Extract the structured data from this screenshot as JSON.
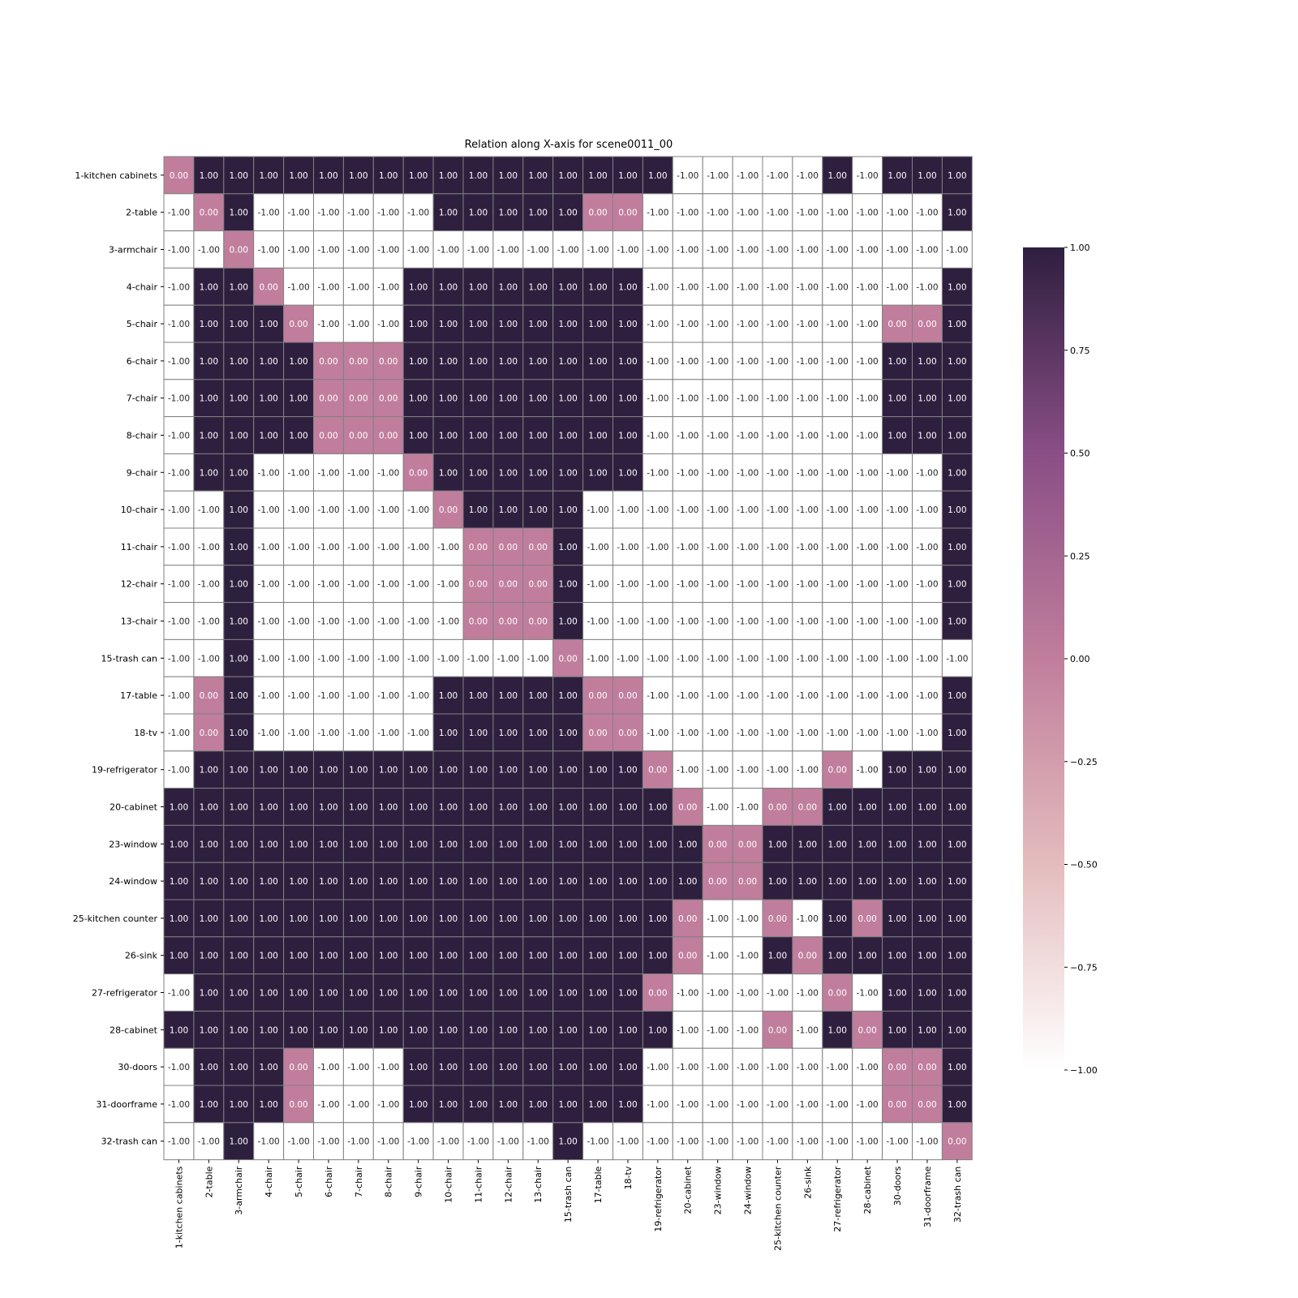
{
  "chart_data": {
    "type": "heatmap",
    "title": "Relation along X-axis for scene0011_00",
    "labels": [
      "1-kitchen cabinets",
      "2-table",
      "3-armchair",
      "4-chair",
      "5-chair",
      "6-chair",
      "7-chair",
      "8-chair",
      "9-chair",
      "10-chair",
      "11-chair",
      "12-chair",
      "13-chair",
      "15-trash can",
      "17-table",
      "18-tv",
      "19-refrigerator",
      "20-cabinet",
      "23-window",
      "24-window",
      "25-kitchen counter",
      "26-sink",
      "27-refrigerator",
      "28-cabinet",
      "30-doors",
      "31-doorframe",
      "32-trash can"
    ],
    "matrix": [
      [
        0,
        1,
        1,
        1,
        1,
        1,
        1,
        1,
        1,
        1,
        1,
        1,
        1,
        1,
        1,
        1,
        1,
        -1,
        -1,
        -1,
        -1,
        -1,
        1,
        -1,
        1,
        1,
        1
      ],
      [
        -1,
        0,
        1,
        -1,
        -1,
        -1,
        -1,
        -1,
        -1,
        1,
        1,
        1,
        1,
        1,
        0,
        0,
        -1,
        -1,
        -1,
        -1,
        -1,
        -1,
        -1,
        -1,
        -1,
        -1,
        1
      ],
      [
        -1,
        -1,
        0,
        -1,
        -1,
        -1,
        -1,
        -1,
        -1,
        -1,
        -1,
        -1,
        -1,
        -1,
        -1,
        -1,
        -1,
        -1,
        -1,
        -1,
        -1,
        -1,
        -1,
        -1,
        -1,
        -1,
        -1
      ],
      [
        -1,
        1,
        1,
        0,
        -1,
        -1,
        -1,
        -1,
        1,
        1,
        1,
        1,
        1,
        1,
        1,
        1,
        -1,
        -1,
        -1,
        -1,
        -1,
        -1,
        -1,
        -1,
        -1,
        -1,
        1
      ],
      [
        -1,
        1,
        1,
        1,
        0,
        -1,
        -1,
        -1,
        1,
        1,
        1,
        1,
        1,
        1,
        1,
        1,
        -1,
        -1,
        -1,
        -1,
        -1,
        -1,
        -1,
        -1,
        0,
        0,
        1
      ],
      [
        -1,
        1,
        1,
        1,
        1,
        0,
        0,
        0,
        1,
        1,
        1,
        1,
        1,
        1,
        1,
        1,
        -1,
        -1,
        -1,
        -1,
        -1,
        -1,
        -1,
        -1,
        1,
        1,
        1
      ],
      [
        -1,
        1,
        1,
        1,
        1,
        0,
        0,
        0,
        1,
        1,
        1,
        1,
        1,
        1,
        1,
        1,
        -1,
        -1,
        -1,
        -1,
        -1,
        -1,
        -1,
        -1,
        1,
        1,
        1
      ],
      [
        -1,
        1,
        1,
        1,
        1,
        0,
        0,
        0,
        1,
        1,
        1,
        1,
        1,
        1,
        1,
        1,
        -1,
        -1,
        -1,
        -1,
        -1,
        -1,
        -1,
        -1,
        1,
        1,
        1
      ],
      [
        -1,
        1,
        1,
        -1,
        -1,
        -1,
        -1,
        -1,
        0,
        1,
        1,
        1,
        1,
        1,
        1,
        1,
        -1,
        -1,
        -1,
        -1,
        -1,
        -1,
        -1,
        -1,
        -1,
        -1,
        1
      ],
      [
        -1,
        -1,
        1,
        -1,
        -1,
        -1,
        -1,
        -1,
        -1,
        0,
        1,
        1,
        1,
        1,
        -1,
        -1,
        -1,
        -1,
        -1,
        -1,
        -1,
        -1,
        -1,
        -1,
        -1,
        -1,
        1
      ],
      [
        -1,
        -1,
        1,
        -1,
        -1,
        -1,
        -1,
        -1,
        -1,
        -1,
        0,
        0,
        0,
        1,
        -1,
        -1,
        -1,
        -1,
        -1,
        -1,
        -1,
        -1,
        -1,
        -1,
        -1,
        -1,
        1
      ],
      [
        -1,
        -1,
        1,
        -1,
        -1,
        -1,
        -1,
        -1,
        -1,
        -1,
        0,
        0,
        0,
        1,
        -1,
        -1,
        -1,
        -1,
        -1,
        -1,
        -1,
        -1,
        -1,
        -1,
        -1,
        -1,
        1
      ],
      [
        -1,
        -1,
        1,
        -1,
        -1,
        -1,
        -1,
        -1,
        -1,
        -1,
        0,
        0,
        0,
        1,
        -1,
        -1,
        -1,
        -1,
        -1,
        -1,
        -1,
        -1,
        -1,
        -1,
        -1,
        -1,
        1
      ],
      [
        -1,
        -1,
        1,
        -1,
        -1,
        -1,
        -1,
        -1,
        -1,
        -1,
        -1,
        -1,
        -1,
        0,
        -1,
        -1,
        -1,
        -1,
        -1,
        -1,
        -1,
        -1,
        -1,
        -1,
        -1,
        -1,
        -1
      ],
      [
        -1,
        0,
        1,
        -1,
        -1,
        -1,
        -1,
        -1,
        -1,
        1,
        1,
        1,
        1,
        1,
        0,
        0,
        -1,
        -1,
        -1,
        -1,
        -1,
        -1,
        -1,
        -1,
        -1,
        -1,
        1
      ],
      [
        -1,
        0,
        1,
        -1,
        -1,
        -1,
        -1,
        -1,
        -1,
        1,
        1,
        1,
        1,
        1,
        0,
        0,
        -1,
        -1,
        -1,
        -1,
        -1,
        -1,
        -1,
        -1,
        -1,
        -1,
        1
      ],
      [
        -1,
        1,
        1,
        1,
        1,
        1,
        1,
        1,
        1,
        1,
        1,
        1,
        1,
        1,
        1,
        1,
        0,
        -1,
        -1,
        -1,
        -1,
        -1,
        0,
        -1,
        1,
        1,
        1
      ],
      [
        1,
        1,
        1,
        1,
        1,
        1,
        1,
        1,
        1,
        1,
        1,
        1,
        1,
        1,
        1,
        1,
        1,
        0,
        -1,
        -1,
        0,
        0,
        1,
        1,
        1,
        1,
        1
      ],
      [
        1,
        1,
        1,
        1,
        1,
        1,
        1,
        1,
        1,
        1,
        1,
        1,
        1,
        1,
        1,
        1,
        1,
        1,
        0,
        0,
        1,
        1,
        1,
        1,
        1,
        1,
        1
      ],
      [
        1,
        1,
        1,
        1,
        1,
        1,
        1,
        1,
        1,
        1,
        1,
        1,
        1,
        1,
        1,
        1,
        1,
        1,
        0,
        0,
        1,
        1,
        1,
        1,
        1,
        1,
        1
      ],
      [
        1,
        1,
        1,
        1,
        1,
        1,
        1,
        1,
        1,
        1,
        1,
        1,
        1,
        1,
        1,
        1,
        1,
        0,
        -1,
        -1,
        0,
        -1,
        1,
        0,
        1,
        1,
        1
      ],
      [
        1,
        1,
        1,
        1,
        1,
        1,
        1,
        1,
        1,
        1,
        1,
        1,
        1,
        1,
        1,
        1,
        1,
        0,
        -1,
        -1,
        1,
        0,
        1,
        1,
        1,
        1,
        1
      ],
      [
        -1,
        1,
        1,
        1,
        1,
        1,
        1,
        1,
        1,
        1,
        1,
        1,
        1,
        1,
        1,
        1,
        0,
        -1,
        -1,
        -1,
        -1,
        -1,
        0,
        -1,
        1,
        1,
        1
      ],
      [
        1,
        1,
        1,
        1,
        1,
        1,
        1,
        1,
        1,
        1,
        1,
        1,
        1,
        1,
        1,
        1,
        1,
        -1,
        -1,
        -1,
        0,
        -1,
        1,
        0,
        1,
        1,
        1
      ],
      [
        -1,
        1,
        1,
        1,
        0,
        -1,
        -1,
        -1,
        1,
        1,
        1,
        1,
        1,
        1,
        1,
        1,
        -1,
        -1,
        -1,
        -1,
        -1,
        -1,
        -1,
        -1,
        0,
        0,
        1
      ],
      [
        -1,
        1,
        1,
        1,
        0,
        -1,
        -1,
        -1,
        1,
        1,
        1,
        1,
        1,
        1,
        1,
        1,
        -1,
        -1,
        -1,
        -1,
        -1,
        -1,
        -1,
        -1,
        0,
        0,
        1
      ],
      [
        -1,
        -1,
        1,
        -1,
        -1,
        -1,
        -1,
        -1,
        -1,
        -1,
        -1,
        -1,
        -1,
        1,
        -1,
        -1,
        -1,
        -1,
        -1,
        -1,
        -1,
        -1,
        -1,
        -1,
        -1,
        -1,
        0
      ]
    ],
    "vmin": -1,
    "vmax": 1,
    "value_format": "0.00",
    "colorbar_ticks": [
      "1.00",
      "0.75",
      "0.50",
      "0.25",
      "0.00",
      "−0.25",
      "−0.50",
      "−0.75",
      "−1.00"
    ],
    "colors": {
      "high": "#2e1f3f",
      "mid_upper": "#8a4e86",
      "zero": "#c07e9c",
      "mid_lower": "#e4bcbd",
      "low": "#ffffff",
      "grid": "#808080"
    }
  }
}
